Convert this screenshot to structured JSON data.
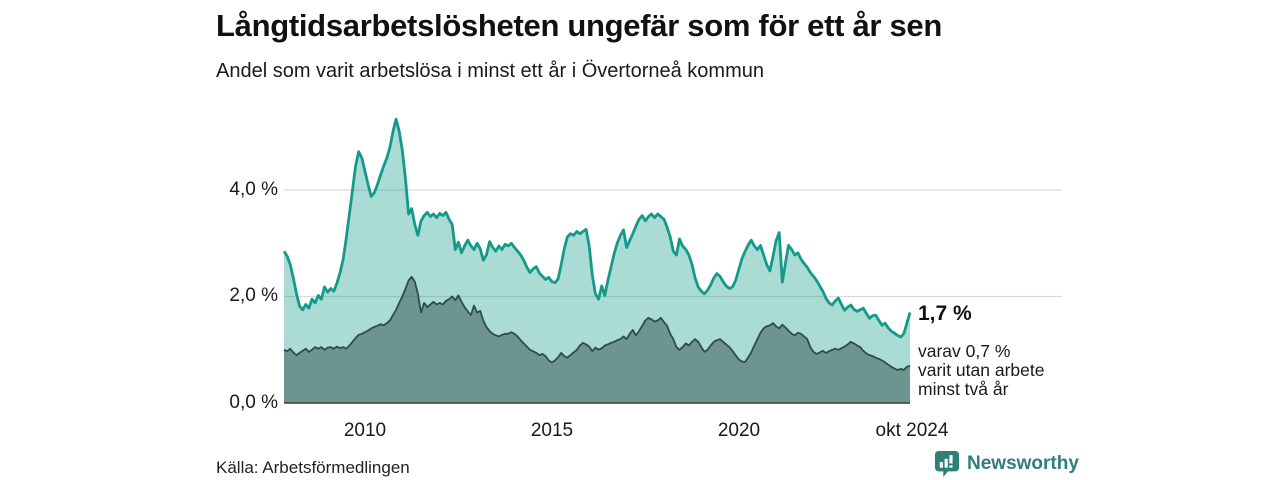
{
  "header": {
    "title": "Långtidsarbetslösheten ungefär som för ett år sen",
    "subtitle": "Andel som varit arbetslösa i minst ett år i Övertorneå kommun"
  },
  "annotation": {
    "latest_value": "1,7 %",
    "detail_line1": "varav 0,7 %",
    "detail_line2": "varit utan arbete",
    "detail_line3": "minst två år"
  },
  "footer": {
    "source": "Källa: Arbetsförmedlingen",
    "brand": "Newsworthy"
  },
  "colors": {
    "line_1yr": "#149a8b",
    "fill_1yr": "rgba(20,154,139,0.36)",
    "line_2yr": "#2f4d47",
    "fill_2yr": "rgba(47,77,71,0.5)",
    "grid": "#d9d9d9",
    "axis": "#3c3c3c",
    "brand": "#2e7f78"
  },
  "chart_data": {
    "type": "area",
    "title": "Långtidsarbetslösheten ungefär som för ett år sen",
    "subtitle": "Andel som varit arbetslösa i minst ett år i Övertorneå kommun",
    "unit": "%",
    "x_start": "2008-01",
    "x_end": "2024-10",
    "x_frequency": "monthly",
    "ylim": [
      0,
      5.5
    ],
    "grid": "horizontal",
    "y_ticks": [
      {
        "value": 0,
        "label": "0,0 %"
      },
      {
        "value": 2,
        "label": "2,0 %"
      },
      {
        "value": 4,
        "label": "4,0 %"
      }
    ],
    "x_ticks": [
      {
        "year": 2010.0,
        "label": "2010"
      },
      {
        "year": 2015.0,
        "label": "2015"
      },
      {
        "year": 2020.0,
        "label": "2020"
      },
      {
        "year": 2024.75,
        "label": "okt 2024"
      }
    ],
    "latest": {
      "value_1yr": 1.7,
      "value_2yr": 0.7,
      "label": "okt 2024"
    },
    "series": [
      {
        "name": "Arbetslösa minst ett år",
        "values": [
          2.85,
          2.76,
          2.6,
          2.35,
          2.05,
          1.82,
          1.75,
          1.85,
          1.78,
          1.95,
          1.88,
          2.02,
          1.95,
          2.18,
          2.08,
          2.15,
          2.1,
          2.25,
          2.45,
          2.7,
          3.1,
          3.55,
          4.0,
          4.45,
          4.72,
          4.6,
          4.35,
          4.1,
          3.88,
          3.95,
          4.1,
          4.28,
          4.45,
          4.6,
          4.8,
          5.1,
          5.33,
          5.1,
          4.75,
          4.2,
          3.55,
          3.65,
          3.35,
          3.15,
          3.42,
          3.52,
          3.58,
          3.5,
          3.55,
          3.48,
          3.56,
          3.52,
          3.58,
          3.45,
          3.35,
          2.88,
          3.02,
          2.82,
          2.95,
          3.06,
          2.95,
          2.88,
          3.0,
          2.9,
          2.68,
          2.78,
          3.03,
          2.92,
          2.85,
          2.95,
          2.88,
          2.98,
          2.95,
          3.0,
          2.92,
          2.85,
          2.78,
          2.68,
          2.55,
          2.45,
          2.52,
          2.56,
          2.44,
          2.38,
          2.32,
          2.36,
          2.28,
          2.26,
          2.33,
          2.6,
          2.9,
          3.12,
          3.18,
          3.15,
          3.22,
          3.18,
          3.22,
          3.26,
          2.95,
          2.4,
          2.05,
          1.95,
          2.2,
          2.02,
          2.3,
          2.55,
          2.8,
          3.0,
          3.15,
          3.25,
          2.92,
          3.05,
          3.18,
          3.32,
          3.45,
          3.52,
          3.42,
          3.5,
          3.55,
          3.48,
          3.55,
          3.5,
          3.45,
          3.3,
          3.12,
          2.85,
          2.78,
          3.08,
          2.95,
          2.88,
          2.78,
          2.6,
          2.35,
          2.18,
          2.1,
          2.05,
          2.12,
          2.22,
          2.35,
          2.43,
          2.38,
          2.28,
          2.2,
          2.15,
          2.18,
          2.3,
          2.5,
          2.7,
          2.84,
          2.96,
          3.06,
          2.95,
          2.88,
          2.96,
          2.78,
          2.6,
          2.48,
          2.75,
          3.05,
          3.2,
          2.27,
          2.62,
          2.96,
          2.88,
          2.78,
          2.82,
          2.7,
          2.62,
          2.55,
          2.45,
          2.38,
          2.3,
          2.2,
          2.1,
          1.97,
          1.88,
          1.84,
          1.92,
          1.97,
          1.85,
          1.74,
          1.8,
          1.84,
          1.76,
          1.72,
          1.75,
          1.78,
          1.68,
          1.59,
          1.64,
          1.65,
          1.55,
          1.46,
          1.5,
          1.41,
          1.35,
          1.31,
          1.27,
          1.24,
          1.3,
          1.5,
          1.7
        ]
      },
      {
        "name": "Arbetslösa minst två år",
        "values": [
          1.0,
          0.97,
          1.02,
          0.95,
          0.9,
          0.94,
          0.98,
          1.02,
          0.96,
          1.0,
          1.05,
          1.02,
          1.05,
          1.0,
          1.04,
          1.05,
          1.02,
          1.06,
          1.03,
          1.05,
          1.02,
          1.08,
          1.15,
          1.22,
          1.28,
          1.3,
          1.33,
          1.36,
          1.4,
          1.43,
          1.45,
          1.48,
          1.46,
          1.5,
          1.55,
          1.65,
          1.75,
          1.88,
          2.0,
          2.15,
          2.3,
          2.37,
          2.28,
          2.05,
          1.7,
          1.88,
          1.8,
          1.85,
          1.9,
          1.85,
          1.88,
          1.85,
          1.92,
          1.95,
          2.0,
          1.93,
          2.02,
          1.9,
          1.8,
          1.72,
          1.65,
          1.83,
          1.7,
          1.73,
          1.55,
          1.43,
          1.35,
          1.3,
          1.27,
          1.25,
          1.28,
          1.3,
          1.3,
          1.33,
          1.3,
          1.25,
          1.18,
          1.12,
          1.06,
          1.0,
          0.97,
          0.94,
          0.9,
          0.92,
          0.88,
          0.8,
          0.76,
          0.8,
          0.86,
          0.94,
          0.88,
          0.85,
          0.9,
          0.95,
          1.0,
          1.08,
          1.13,
          1.1,
          1.06,
          0.97,
          1.04,
          1.0,
          1.03,
          1.08,
          1.1,
          1.13,
          1.15,
          1.18,
          1.2,
          1.25,
          1.2,
          1.3,
          1.37,
          1.27,
          1.35,
          1.45,
          1.55,
          1.6,
          1.57,
          1.53,
          1.55,
          1.6,
          1.52,
          1.45,
          1.3,
          1.2,
          1.05,
          1.0,
          1.05,
          1.12,
          1.08,
          1.15,
          1.2,
          1.15,
          1.05,
          0.96,
          1.0,
          1.08,
          1.15,
          1.18,
          1.2,
          1.15,
          1.1,
          1.05,
          0.98,
          0.9,
          0.82,
          0.78,
          0.77,
          0.85,
          0.95,
          1.08,
          1.2,
          1.32,
          1.4,
          1.44,
          1.46,
          1.5,
          1.44,
          1.4,
          1.47,
          1.42,
          1.36,
          1.3,
          1.27,
          1.32,
          1.3,
          1.25,
          1.2,
          1.05,
          0.96,
          0.92,
          0.95,
          0.98,
          0.94,
          0.97,
          1.0,
          1.02,
          1.0,
          1.03,
          1.06,
          1.1,
          1.15,
          1.12,
          1.08,
          1.05,
          0.98,
          0.93,
          0.9,
          0.88,
          0.85,
          0.83,
          0.8,
          0.76,
          0.72,
          0.68,
          0.65,
          0.62,
          0.64,
          0.62,
          0.68,
          0.7
        ]
      }
    ]
  }
}
